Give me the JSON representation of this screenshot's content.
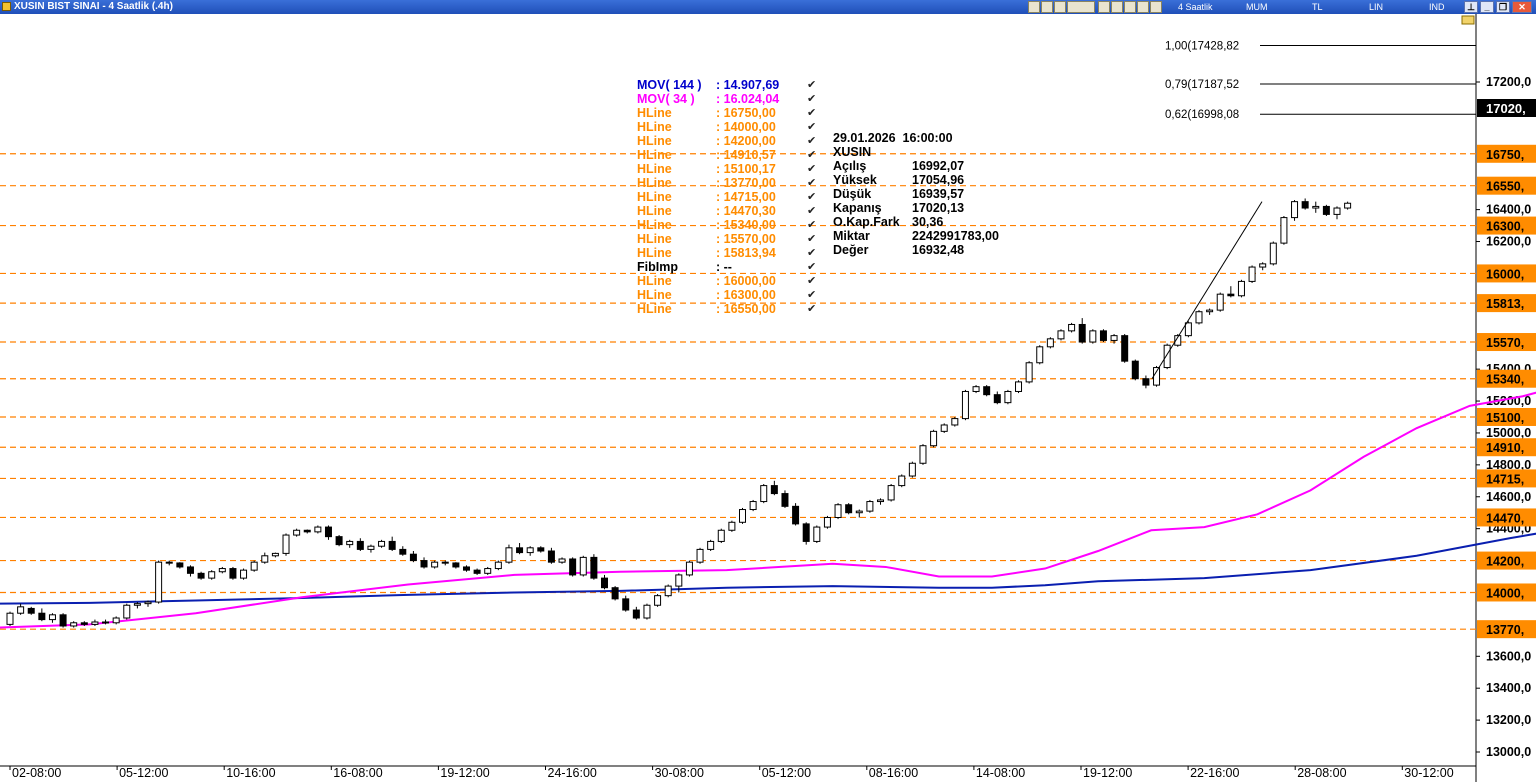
{
  "window": {
    "title": "XUSIN BIST SINAI - 4 Saatlik (.4h)",
    "period_label": "4 Saatlik",
    "type_label": "MUM",
    "currency_label": "TL",
    "scale_label": "LIN",
    "ind_label": "IND",
    "colors": {
      "title_bg": "#2a5ccc",
      "grid": "#cccccc"
    }
  },
  "legend": [
    {
      "name": "MOV( 144 )",
      "value": ": 14.907,69",
      "color": "#0000cc"
    },
    {
      "name": "MOV( 34 )",
      "value": ": 16.024,04",
      "color": "#ff00ff"
    },
    {
      "name": "HLine",
      "value": ": 16750,00",
      "color": "#ff8c00"
    },
    {
      "name": "HLine",
      "value": ": 14000,00",
      "color": "#ff8c00"
    },
    {
      "name": "HLine",
      "value": ": 14200,00",
      "color": "#ff8c00"
    },
    {
      "name": "HLine",
      "value": ": 14910,57",
      "color": "#ff8c00"
    },
    {
      "name": "HLine",
      "value": ": 15100,17",
      "color": "#ff8c00"
    },
    {
      "name": "HLine",
      "value": ": 13770,00",
      "color": "#ff8c00"
    },
    {
      "name": "HLine",
      "value": ": 14715,00",
      "color": "#ff8c00"
    },
    {
      "name": "HLine",
      "value": ": 14470,30",
      "color": "#ff8c00"
    },
    {
      "name": "HLine",
      "value": ": 15340,00",
      "color": "#ff8c00"
    },
    {
      "name": "HLine",
      "value": ": 15570,00",
      "color": "#ff8c00"
    },
    {
      "name": "HLine",
      "value": ": 15813,94",
      "color": "#ff8c00"
    },
    {
      "name": "FibImp",
      "value": ": --",
      "color": "#000000"
    },
    {
      "name": "HLine",
      "value": ": 16000,00",
      "color": "#ff8c00"
    },
    {
      "name": "HLine",
      "value": ": 16300,00",
      "color": "#ff8c00"
    },
    {
      "name": "HLine",
      "value": ": 16550,00",
      "color": "#ff8c00"
    }
  ],
  "check_glyph": "✔",
  "info_box": {
    "datetime": "29.01.2026  16:00:00",
    "symbol": "XUSIN",
    "rows": [
      {
        "label": "Açılış",
        "value": "16992,07"
      },
      {
        "label": "Yüksek",
        "value": "17054,96"
      },
      {
        "label": "Düşük",
        "value": "16939,57"
      },
      {
        "label": "Kapanış",
        "value": "17020,13"
      },
      {
        "label": "O.Kap.Fark",
        "value": "30,36"
      },
      {
        "label": "Miktar",
        "value": "2242991783,00"
      },
      {
        "label": "Değer",
        "value": "16932,48"
      }
    ]
  },
  "chart_data": {
    "type": "candlestick",
    "y_axis_ticks": [
      "17200,0",
      "16400,0",
      "16200,0",
      "15400,0",
      "15200,0",
      "15000,0",
      "14800,0",
      "14600,0",
      "14400,0",
      "13600,0",
      "13400,0",
      "13200,0",
      "13000,0"
    ],
    "y_axis_tick_values": [
      17200,
      16400,
      16200,
      15400,
      15200,
      15000,
      14800,
      14600,
      14400,
      13600,
      13400,
      13200,
      13000
    ],
    "x_axis_labels": [
      "02-08:00",
      "05-12:00",
      "10-16:00",
      "16-08:00",
      "19-12:00",
      "24-16:00",
      "30-08:00",
      "05-12:00",
      "08-16:00",
      "14-08:00",
      "19-12:00",
      "22-16:00",
      "28-08:00",
      "30-12:00"
    ],
    "last_price_label": "17020,",
    "hlines": [
      {
        "value": 16750,
        "label": "16750,"
      },
      {
        "value": 16550,
        "label": "16550,"
      },
      {
        "value": 16300,
        "label": "16300,"
      },
      {
        "value": 16000,
        "label": "16000,"
      },
      {
        "value": 15813.94,
        "label": "15813,"
      },
      {
        "value": 15570,
        "label": "15570,"
      },
      {
        "value": 15340,
        "label": "15340,"
      },
      {
        "value": 15100.17,
        "label": "15100,"
      },
      {
        "value": 14910.57,
        "label": "14910,"
      },
      {
        "value": 14715,
        "label": "14715,"
      },
      {
        "value": 14470.3,
        "label": "14470,"
      },
      {
        "value": 14200,
        "label": "14200,"
      },
      {
        "value": 14000,
        "label": "14000,"
      },
      {
        "value": 13770,
        "label": "13770,"
      }
    ],
    "fib_levels": [
      {
        "label": "1,00(17428,82",
        "value": 17428.82
      },
      {
        "label": "0,79(17187,52",
        "value": 17187.52
      },
      {
        "label": "0,62(16998,08",
        "value": 16998.08
      }
    ],
    "trendline": [
      [
        16400,
        15340
      ],
      [
        16482,
        16450
      ]
    ],
    "ma144": [
      [
        -50,
        13938
      ],
      [
        -10,
        13930
      ],
      [
        60,
        13935
      ],
      [
        140,
        13950
      ],
      [
        220,
        13965
      ],
      [
        300,
        13985
      ],
      [
        380,
        14000
      ],
      [
        460,
        14010
      ],
      [
        540,
        14030
      ],
      [
        620,
        14040
      ],
      [
        700,
        14030
      ],
      [
        740,
        14030
      ],
      [
        780,
        14045
      ],
      [
        820,
        14070
      ],
      [
        900,
        14090
      ],
      [
        980,
        14140
      ],
      [
        1060,
        14230
      ],
      [
        1130,
        14340
      ],
      [
        1200,
        14440
      ],
      [
        1280,
        14570
      ],
      [
        1350,
        14720
      ],
      [
        1400,
        14860
      ],
      [
        1430,
        14907
      ]
    ],
    "ma34": [
      [
        -50,
        13770
      ],
      [
        -10,
        13780
      ],
      [
        60,
        13800
      ],
      [
        140,
        13870
      ],
      [
        220,
        13970
      ],
      [
        300,
        14050
      ],
      [
        380,
        14110
      ],
      [
        460,
        14130
      ],
      [
        540,
        14140
      ],
      [
        620,
        14180
      ],
      [
        660,
        14160
      ],
      [
        700,
        14100
      ],
      [
        740,
        14100
      ],
      [
        780,
        14150
      ],
      [
        820,
        14260
      ],
      [
        860,
        14390
      ],
      [
        900,
        14410
      ],
      [
        940,
        14490
      ],
      [
        980,
        14640
      ],
      [
        1020,
        14850
      ],
      [
        1060,
        15030
      ],
      [
        1100,
        15170
      ],
      [
        1140,
        15230
      ],
      [
        1180,
        15320
      ],
      [
        1220,
        15470
      ],
      [
        1260,
        15600
      ],
      [
        1300,
        15720
      ],
      [
        1340,
        15890
      ],
      [
        1370,
        16010
      ],
      [
        1390,
        16024
      ]
    ],
    "candles": [
      [
        0,
        13800,
        13880,
        13790,
        13870
      ],
      [
        8,
        13870,
        13930,
        13860,
        13910
      ],
      [
        16,
        13900,
        13910,
        13860,
        13870
      ],
      [
        24,
        13870,
        13900,
        13820,
        13830
      ],
      [
        32,
        13830,
        13870,
        13810,
        13860
      ],
      [
        40,
        13860,
        13870,
        13780,
        13790
      ],
      [
        48,
        13790,
        13820,
        13780,
        13810
      ],
      [
        56,
        13810,
        13820,
        13790,
        13800
      ],
      [
        64,
        13800,
        13830,
        13790,
        13815
      ],
      [
        72,
        13815,
        13830,
        13800,
        13810
      ],
      [
        80,
        13810,
        13850,
        13800,
        13840
      ],
      [
        88,
        13840,
        13930,
        13830,
        13920
      ],
      [
        96,
        13920,
        13940,
        13900,
        13930
      ],
      [
        104,
        13930,
        13950,
        13910,
        13940
      ],
      [
        112,
        13940,
        14200,
        13930,
        14190
      ],
      [
        120,
        14190,
        14200,
        14170,
        14185
      ],
      [
        128,
        14185,
        14190,
        14150,
        14160
      ],
      [
        136,
        14160,
        14170,
        14100,
        14120
      ],
      [
        144,
        14120,
        14130,
        14080,
        14090
      ],
      [
        152,
        14090,
        14140,
        14080,
        14130
      ],
      [
        160,
        14130,
        14160,
        14120,
        14150
      ],
      [
        168,
        14150,
        14160,
        14080,
        14090
      ],
      [
        176,
        14090,
        14150,
        14080,
        14140
      ],
      [
        184,
        14140,
        14200,
        14130,
        14190
      ],
      [
        192,
        14190,
        14250,
        14180,
        14230
      ],
      [
        200,
        14230,
        14250,
        14220,
        14245
      ],
      [
        208,
        14245,
        14370,
        14230,
        14360
      ],
      [
        216,
        14360,
        14400,
        14350,
        14390
      ],
      [
        224,
        14390,
        14395,
        14370,
        14380
      ],
      [
        232,
        14380,
        14420,
        14370,
        14410
      ],
      [
        240,
        14410,
        14420,
        14330,
        14350
      ],
      [
        248,
        14350,
        14360,
        14290,
        14300
      ],
      [
        256,
        14300,
        14330,
        14280,
        14320
      ],
      [
        264,
        14320,
        14340,
        14260,
        14270
      ],
      [
        272,
        14270,
        14300,
        14250,
        14290
      ],
      [
        280,
        14290,
        14330,
        14280,
        14320
      ],
      [
        288,
        14320,
        14350,
        14260,
        14270
      ],
      [
        296,
        14270,
        14290,
        14230,
        14240
      ],
      [
        304,
        14240,
        14260,
        14190,
        14200
      ],
      [
        312,
        14200,
        14220,
        14150,
        14160
      ],
      [
        320,
        14160,
        14200,
        14150,
        14190
      ],
      [
        328,
        14190,
        14200,
        14170,
        14185
      ],
      [
        336,
        14185,
        14190,
        14150,
        14160
      ],
      [
        344,
        14160,
        14170,
        14130,
        14140
      ],
      [
        352,
        14140,
        14150,
        14110,
        14120
      ],
      [
        360,
        14120,
        14160,
        14110,
        14150
      ],
      [
        368,
        14150,
        14200,
        14140,
        14190
      ],
      [
        376,
        14190,
        14300,
        14180,
        14280
      ],
      [
        384,
        14280,
        14310,
        14240,
        14250
      ],
      [
        392,
        14250,
        14290,
        14230,
        14280
      ],
      [
        400,
        14280,
        14290,
        14250,
        14260
      ],
      [
        408,
        14260,
        14280,
        14180,
        14190
      ],
      [
        416,
        14190,
        14220,
        14180,
        14210
      ],
      [
        424,
        14210,
        14220,
        14100,
        14110
      ],
      [
        432,
        14110,
        14230,
        14100,
        14220
      ],
      [
        440,
        14220,
        14240,
        14080,
        14090
      ],
      [
        448,
        14090,
        14110,
        14020,
        14030
      ],
      [
        456,
        14030,
        14040,
        13950,
        13960
      ],
      [
        464,
        13960,
        13980,
        13880,
        13890
      ],
      [
        472,
        13890,
        13910,
        13830,
        13840
      ],
      [
        480,
        13840,
        13930,
        13830,
        13920
      ],
      [
        488,
        13920,
        13990,
        13910,
        13980
      ],
      [
        496,
        13980,
        14050,
        13970,
        14040
      ],
      [
        504,
        14040,
        14120,
        14000,
        14110
      ],
      [
        512,
        14110,
        14200,
        14100,
        14190
      ],
      [
        520,
        14190,
        14280,
        14180,
        14270
      ],
      [
        528,
        14270,
        14330,
        14260,
        14320
      ],
      [
        536,
        14320,
        14400,
        14310,
        14390
      ],
      [
        544,
        14390,
        14450,
        14380,
        14440
      ],
      [
        552,
        14440,
        14530,
        14430,
        14520
      ],
      [
        560,
        14520,
        14580,
        14510,
        14570
      ],
      [
        568,
        14570,
        14680,
        14560,
        14670
      ],
      [
        576,
        14670,
        14700,
        14610,
        14620
      ],
      [
        584,
        14620,
        14640,
        14530,
        14540
      ],
      [
        592,
        14540,
        14560,
        14420,
        14430
      ],
      [
        600,
        14430,
        14440,
        14300,
        14320
      ],
      [
        608,
        14320,
        14420,
        14310,
        14410
      ],
      [
        616,
        14410,
        14480,
        14400,
        14470
      ],
      [
        624,
        14470,
        14560,
        14460,
        14550
      ],
      [
        632,
        14550,
        14560,
        14490,
        14500
      ],
      [
        640,
        14500,
        14520,
        14470,
        14510
      ],
      [
        648,
        14510,
        14580,
        14500,
        14570
      ],
      [
        656,
        14570,
        14590,
        14550,
        14580
      ],
      [
        664,
        14580,
        14680,
        14570,
        14670
      ],
      [
        672,
        14670,
        14740,
        14660,
        14730
      ],
      [
        680,
        14730,
        14820,
        14720,
        14810
      ],
      [
        688,
        14810,
        14930,
        14800,
        14920
      ],
      [
        696,
        14920,
        15020,
        14910,
        15010
      ],
      [
        704,
        15010,
        15060,
        15000,
        15050
      ],
      [
        712,
        15050,
        15100,
        15040,
        15090
      ],
      [
        720,
        15090,
        15270,
        15080,
        15260
      ],
      [
        728,
        15260,
        15300,
        15250,
        15290
      ],
      [
        736,
        15290,
        15300,
        15230,
        15240
      ],
      [
        744,
        15240,
        15260,
        15180,
        15190
      ],
      [
        752,
        15190,
        15270,
        15180,
        15260
      ],
      [
        760,
        15260,
        15330,
        15250,
        15320
      ],
      [
        768,
        15320,
        15450,
        15310,
        15440
      ],
      [
        776,
        15440,
        15550,
        15430,
        15540
      ],
      [
        784,
        15540,
        15600,
        15530,
        15590
      ],
      [
        792,
        15590,
        15650,
        15580,
        15640
      ],
      [
        800,
        15640,
        15690,
        15630,
        15680
      ],
      [
        808,
        15680,
        15720,
        15560,
        15570
      ],
      [
        816,
        15570,
        15650,
        15560,
        15640
      ],
      [
        824,
        15640,
        15650,
        15570,
        15580
      ],
      [
        832,
        15580,
        15620,
        15560,
        15610
      ],
      [
        840,
        15610,
        15620,
        15440,
        15450
      ],
      [
        848,
        15450,
        15460,
        15330,
        15340
      ],
      [
        856,
        15340,
        15360,
        15280,
        15300
      ],
      [
        864,
        15300,
        15420,
        15290,
        15410
      ],
      [
        872,
        15410,
        15560,
        15400,
        15550
      ],
      [
        880,
        15550,
        15620,
        15540,
        15610
      ],
      [
        888,
        15610,
        15700,
        15600,
        15690
      ],
      [
        896,
        15690,
        15770,
        15680,
        15760
      ],
      [
        904,
        15760,
        15780,
        15740,
        15770
      ],
      [
        912,
        15770,
        15880,
        15760,
        15870
      ],
      [
        920,
        15870,
        15920,
        15850,
        15860
      ],
      [
        928,
        15860,
        15960,
        15850,
        15950
      ],
      [
        936,
        15950,
        16050,
        15940,
        16040
      ],
      [
        944,
        16040,
        16070,
        16020,
        16060
      ],
      [
        952,
        16060,
        16200,
        16050,
        16190
      ],
      [
        960,
        16190,
        16360,
        16180,
        16350
      ],
      [
        968,
        16350,
        16460,
        16330,
        16450
      ],
      [
        976,
        16450,
        16470,
        16400,
        16410
      ],
      [
        984,
        16410,
        16450,
        16380,
        16420
      ],
      [
        992,
        16420,
        16430,
        16360,
        16370
      ],
      [
        1000,
        16370,
        16420,
        16340,
        16410
      ],
      [
        1008,
        16410,
        16450,
        16400,
        16440
      ]
    ]
  }
}
